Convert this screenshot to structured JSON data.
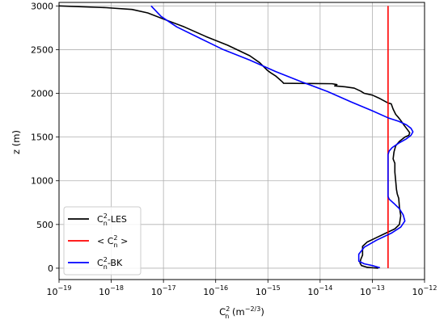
{
  "chart_data": {
    "type": "line",
    "xlabel": {
      "base": "C",
      "sup": "2",
      "sub": "n",
      "unit_pre": " (m",
      "unit_sup": "−2/3",
      "unit_post": ")"
    },
    "ylabel": "z (m)",
    "xscale": "log",
    "xlim": [
      1e-19,
      1e-12
    ],
    "ylim": [
      -130,
      3040
    ],
    "grid": true,
    "legend_position": "lower-left",
    "x_ticks": [
      {
        "value": 1e-19,
        "base": "10",
        "exp": "−19"
      },
      {
        "value": 1e-18,
        "base": "10",
        "exp": "−18"
      },
      {
        "value": 1e-17,
        "base": "10",
        "exp": "−17"
      },
      {
        "value": 1e-16,
        "base": "10",
        "exp": "−16"
      },
      {
        "value": 1e-15,
        "base": "10",
        "exp": "−15"
      },
      {
        "value": 1e-14,
        "base": "10",
        "exp": "−14"
      },
      {
        "value": 1e-13,
        "base": "10",
        "exp": "−13"
      },
      {
        "value": 1e-12,
        "base": "10",
        "exp": "−12"
      }
    ],
    "y_ticks": [
      {
        "value": 0,
        "label": "0"
      },
      {
        "value": 500,
        "label": "500"
      },
      {
        "value": 1000,
        "label": "1000"
      },
      {
        "value": 1500,
        "label": "1500"
      },
      {
        "value": 2000,
        "label": "2000"
      },
      {
        "value": 2500,
        "label": "2500"
      },
      {
        "value": 3000,
        "label": "3000"
      }
    ],
    "series": [
      {
        "key": "les",
        "legend": {
          "pre": "C",
          "sup": "2",
          "sub": "n",
          "post": "-LES"
        },
        "color": "#000000",
        "points": [
          [
            1e-19,
            3000
          ],
          [
            8e-19,
            2980
          ],
          [
            2.5e-18,
            2960
          ],
          [
            5e-18,
            2920
          ],
          [
            1e-17,
            2850
          ],
          [
            2.5e-17,
            2760
          ],
          [
            6.5e-17,
            2650
          ],
          [
            1.7e-16,
            2550
          ],
          [
            4.5e-16,
            2430
          ],
          [
            7e-16,
            2350
          ],
          [
            9.5e-16,
            2270
          ],
          [
            1.1e-15,
            2240
          ],
          [
            1.4e-15,
            2200
          ],
          [
            1.6e-15,
            2170
          ],
          [
            1.9e-15,
            2130
          ],
          [
            2e-15,
            2115
          ],
          [
            1.7e-14,
            2110
          ],
          [
            2.1e-14,
            2100
          ],
          [
            1.9e-14,
            2085
          ],
          [
            3e-14,
            2075
          ],
          [
            4.5e-14,
            2060
          ],
          [
            6e-14,
            2025
          ],
          [
            7e-14,
            2000
          ],
          [
            1e-13,
            1980
          ],
          [
            1.4e-13,
            1940
          ],
          [
            2e-13,
            1890
          ],
          [
            2.3e-13,
            1880
          ],
          [
            2.5e-13,
            1820
          ],
          [
            2.8e-13,
            1760
          ],
          [
            3.2e-13,
            1720
          ],
          [
            3.5e-13,
            1690
          ],
          [
            4e-13,
            1640
          ],
          [
            4.5e-13,
            1600
          ],
          [
            5.2e-13,
            1550
          ],
          [
            5e-13,
            1520
          ],
          [
            4.2e-13,
            1500
          ],
          [
            3.3e-13,
            1450
          ],
          [
            2.8e-13,
            1400
          ],
          [
            2.6e-13,
            1330
          ],
          [
            2.5e-13,
            1250
          ],
          [
            2.7e-13,
            1200
          ],
          [
            2.7e-13,
            1100
          ],
          [
            2.8e-13,
            1000
          ],
          [
            2.9e-13,
            900
          ],
          [
            3e-13,
            850
          ],
          [
            3.2e-13,
            800
          ],
          [
            3.3e-13,
            700
          ],
          [
            3.5e-13,
            600
          ],
          [
            3.3e-13,
            500
          ],
          [
            2.7e-13,
            450
          ],
          [
            1.8e-13,
            400
          ],
          [
            1.2e-13,
            350
          ],
          [
            8e-14,
            300
          ],
          [
            6.5e-14,
            250
          ],
          [
            6.5e-14,
            200
          ],
          [
            6.5e-14,
            150
          ],
          [
            6e-14,
            100
          ],
          [
            5.8e-14,
            60
          ],
          [
            6.2e-14,
            30
          ],
          [
            8e-14,
            10
          ],
          [
            1e-13,
            5
          ],
          [
            1.3e-13,
            0
          ]
        ]
      },
      {
        "key": "mean",
        "legend": {
          "pre": "< C",
          "sup": "2",
          "sub": "n",
          "post": " >"
        },
        "color": "#ff0000",
        "points": [
          [
            2e-13,
            0
          ],
          [
            2e-13,
            3000
          ]
        ]
      },
      {
        "key": "bk",
        "legend": {
          "pre": "C",
          "sup": "2",
          "sub": "n",
          "post": "-BK"
        },
        "color": "#0000ff",
        "points": [
          [
            5.8e-18,
            3000
          ],
          [
            9e-18,
            2880
          ],
          [
            1.8e-17,
            2760
          ],
          [
            5e-17,
            2630
          ],
          [
            1.4e-16,
            2500
          ],
          [
            4.5e-16,
            2380
          ],
          [
            1.4e-15,
            2250
          ],
          [
            4.5e-15,
            2130
          ],
          [
            1.4e-14,
            2020
          ],
          [
            4e-14,
            1900
          ],
          [
            1e-13,
            1800
          ],
          [
            2e-13,
            1720
          ],
          [
            3.2e-13,
            1680
          ],
          [
            4.5e-13,
            1640
          ],
          [
            5.5e-13,
            1600
          ],
          [
            6e-13,
            1560
          ],
          [
            5.5e-13,
            1520
          ],
          [
            4.5e-13,
            1480
          ],
          [
            3.2e-13,
            1430
          ],
          [
            2.4e-13,
            1380
          ],
          [
            2.1e-13,
            1340
          ],
          [
            2e-13,
            1300
          ],
          [
            2e-13,
            1000
          ],
          [
            2e-13,
            820
          ],
          [
            2.1e-13,
            790
          ],
          [
            2.6e-13,
            740
          ],
          [
            3.3e-13,
            680
          ],
          [
            3.9e-13,
            610
          ],
          [
            4.2e-13,
            540
          ],
          [
            3.5e-13,
            470
          ],
          [
            2.3e-13,
            400
          ],
          [
            1.2e-13,
            320
          ],
          [
            7e-14,
            240
          ],
          [
            5.5e-14,
            160
          ],
          [
            5.5e-14,
            80
          ],
          [
            7e-14,
            50
          ],
          [
            1e-13,
            30
          ],
          [
            1.4e-13,
            5
          ]
        ]
      }
    ]
  }
}
